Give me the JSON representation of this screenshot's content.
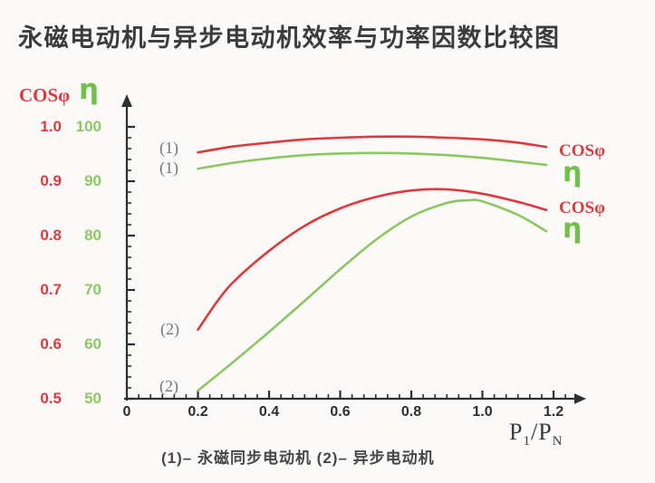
{
  "title": "永磁电动机与异步电动机效率与功率因数比较图",
  "caption": "(1)– 永磁同步电动机 (2)– 异步电动机",
  "colors": {
    "red": "#dc3a3e",
    "green": "#8cc763",
    "axis": "#2f2f2f",
    "tick_text": "#2e2e2e",
    "curve_tag_gray": "#767676",
    "background": "#fbfaf8"
  },
  "axes": {
    "cos": {
      "title": "COSφ"
    },
    "eta": {
      "title": "η"
    },
    "x": {
      "title": "P1/PN"
    }
  },
  "xaxis_label": {
    "p_main": "P",
    "p_sub": "1",
    "slash_p": "/P",
    "n_sub": "N"
  },
  "plot_labels": {
    "curve1_cos": "(1)",
    "curve1_eta": "(1)",
    "curve2_cos": "(2)",
    "curve2_eta": "(2)"
  },
  "right_labels": {
    "group1_cos": "COSφ",
    "group1_eta": "η",
    "group2_cos": "COSφ",
    "group2_eta": "η"
  },
  "chart_data": {
    "type": "line",
    "title": "永磁电动机与异步电动机效率与功率因数比较图",
    "xlabel": "P1/PN",
    "x_range": [
      0,
      1.2
    ],
    "x_ticks": [
      "0",
      "0.2",
      "0.4",
      "0.6",
      "0.8",
      "1.0",
      "1.2"
    ],
    "y_axes": [
      {
        "id": "cos",
        "label": "COSφ",
        "range": [
          0.5,
          1.0
        ],
        "ticks": [
          "1.0",
          "0.9",
          "0.8",
          "0.7",
          "0.6",
          "0.5"
        ]
      },
      {
        "id": "eta",
        "label": "η",
        "range": [
          50,
          100
        ],
        "ticks": [
          "100",
          "90",
          "80",
          "70",
          "60",
          "50"
        ]
      }
    ],
    "grid": false,
    "legend_position": "right-of-curves",
    "series": [
      {
        "name": "COSφ — (1) 永磁同步电动机",
        "curve_label": "(1)",
        "y_axis": "cos",
        "color_key": "red",
        "x": [
          0.2,
          0.3,
          0.4,
          0.5,
          0.6,
          0.7,
          0.8,
          0.9,
          1.0,
          1.1,
          1.18
        ],
        "values": [
          0.953,
          0.964,
          0.971,
          0.977,
          0.98,
          0.982,
          0.982,
          0.98,
          0.977,
          0.971,
          0.963
        ]
      },
      {
        "name": "η — (1) 永磁同步电动机",
        "curve_label": "(1)",
        "y_axis": "eta",
        "color_key": "green",
        "x": [
          0.2,
          0.3,
          0.4,
          0.5,
          0.6,
          0.7,
          0.8,
          0.9,
          1.0,
          1.1,
          1.18
        ],
        "values": [
          92.3,
          93.4,
          94.2,
          94.8,
          95.1,
          95.2,
          95.1,
          94.8,
          94.3,
          93.6,
          93.0
        ]
      },
      {
        "name": "COSφ — (2) 异步电动机",
        "curve_label": "(2)",
        "y_axis": "cos",
        "color_key": "red",
        "x": [
          0.2,
          0.25,
          0.3,
          0.4,
          0.5,
          0.6,
          0.7,
          0.8,
          0.9,
          1.0,
          1.1,
          1.18
        ],
        "values": [
          0.627,
          0.675,
          0.715,
          0.772,
          0.818,
          0.85,
          0.871,
          0.883,
          0.885,
          0.877,
          0.862,
          0.847
        ]
      },
      {
        "name": "η — (2) 异步电动机",
        "curve_label": "(2)",
        "y_axis": "eta",
        "color_key": "green",
        "x": [
          0.2,
          0.3,
          0.4,
          0.5,
          0.6,
          0.7,
          0.8,
          0.9,
          0.96,
          1.0,
          1.1,
          1.18
        ],
        "values": [
          51.5,
          56.8,
          62.3,
          68.0,
          73.8,
          79.2,
          83.5,
          86.0,
          86.5,
          86.3,
          83.8,
          80.8
        ]
      }
    ]
  }
}
